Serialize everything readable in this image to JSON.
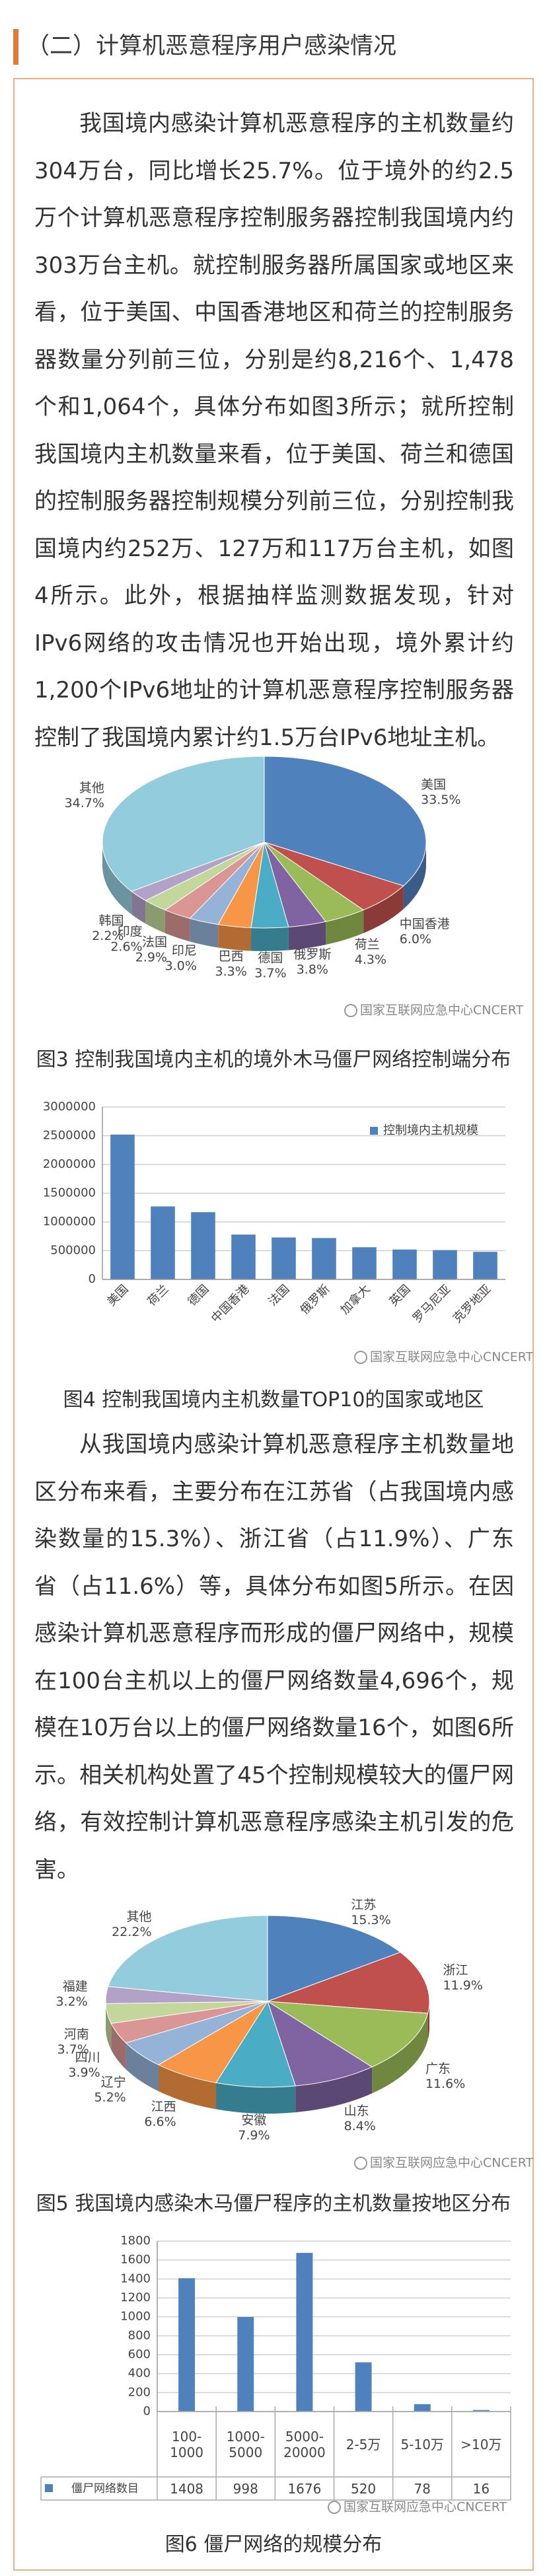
{
  "header": {
    "title": "（二）计算机恶意程序用户感染情况"
  },
  "paragraphs": [
    "我国境内感染计算机恶意程序的主机数量约304万台，同比增长25.7%。位于境外的约2.5万个计算机恶意程序控制服务器控制我国境内约303万台主机。就控制服务器所属国家或地区来看，位于美国、中国香港地区和荷兰的控制服务器数量分列前三位，分别是约8,216个、1,478个和1,064个，具体分布如图3所示；就所控制我国境内主机数量来看，位于美国、荷兰和德国的控制服务器控制规模分列前三位，分别控制我国境内约252万、127万和117万台主机，如图4所示。此外，根据抽样监测数据发现，针对IPv6网络的攻击情况也开始出现，境外累计约1,200个IPv6地址的计算机恶意程序控制服务器控制了我国境内累计约1.5万台IPv6地址主机。",
    "从我国境内感染计算机恶意程序主机数量地区分布来看，主要分布在江苏省（占我国境内感染数量的15.3%）、浙江省（占11.9%）、广东省（占11.6%）等，具体分布如图5所示。在因感染计算机恶意程序而形成的僵尸网络中，规模在100台主机以上的僵尸网络数量4,696个，规模在10万台以上的僵尸网络数量16个，如图6所示。相关机构处置了45个控制规模较大的僵尸网络，有效控制计算机恶意程序感染主机引发的危害。"
  ],
  "chart_data": [
    {
      "type": "pie",
      "caption": "图3 控制我国境内主机的境外木马僵尸网络控制端分布",
      "watermark": "国家互联网应急中心CNCERT",
      "categories": [
        "美国",
        "中国香港",
        "荷兰",
        "俄罗斯",
        "德国",
        "巴西",
        "印尼",
        "法国",
        "印度",
        "韩国",
        "其他"
      ],
      "values": [
        33.5,
        6.0,
        4.3,
        3.8,
        3.7,
        3.3,
        3.0,
        2.9,
        2.6,
        2.2,
        34.7
      ],
      "value_labels": [
        "33.5%",
        "6.0%",
        "4.3%",
        "3.8%",
        "3.7%",
        "3.3%",
        "3.0%",
        "2.9%",
        "2.6%",
        "2.2%",
        "34.7%"
      ],
      "colors": [
        "#4f81bd",
        "#c0504d",
        "#9bbb59",
        "#8064a2",
        "#4bacc6",
        "#f79646",
        "#95b3d7",
        "#d99694",
        "#c3d69b",
        "#b3a2c7",
        "#93cddd"
      ]
    },
    {
      "type": "bar",
      "caption": "图4 控制我国境内主机数量TOP10的国家或地区",
      "watermark": "国家互联网应急中心CNCERT",
      "categories": [
        "美国",
        "荷兰",
        "德国",
        "中国香港",
        "法国",
        "俄罗斯",
        "加拿大",
        "英国",
        "罗马尼亚",
        "克罗地亚"
      ],
      "series": [
        {
          "name": "控制境内主机规模",
          "color": "#4f81bd",
          "values": [
            2520000,
            1270000,
            1170000,
            780000,
            730000,
            720000,
            560000,
            520000,
            510000,
            480000
          ]
        }
      ],
      "ylim": [
        0,
        3000000
      ],
      "yticks": [
        0,
        500000,
        1000000,
        1500000,
        2000000,
        2500000,
        3000000
      ],
      "grid": true,
      "legend": "top-right"
    },
    {
      "type": "pie",
      "caption": "图5 我国境内感染木马僵尸程序的主机数量按地区分布",
      "watermark": "国家互联网应急中心CNCERT",
      "categories": [
        "江苏",
        "浙江",
        "广东",
        "山东",
        "安徽",
        "江西",
        "辽宁",
        "四川",
        "河南",
        "福建",
        "其他"
      ],
      "values": [
        15.3,
        11.9,
        11.6,
        8.4,
        7.9,
        6.6,
        5.2,
        3.9,
        3.7,
        3.2,
        22.2
      ],
      "value_labels": [
        "15.3%",
        "11.9%",
        "11.6%",
        "8.4%",
        "7.9%",
        "6.6%",
        "5.2%",
        "3.9%",
        "3.7%",
        "3.2%",
        "22.2%"
      ],
      "colors": [
        "#4f81bd",
        "#c0504d",
        "#9bbb59",
        "#8064a2",
        "#4bacc6",
        "#f79646",
        "#95b3d7",
        "#d99694",
        "#c3d69b",
        "#b3a2c7",
        "#93cddd"
      ]
    },
    {
      "type": "bar",
      "caption": "图6 僵尸网络的规模分布",
      "watermark": "国家互联网应急中心CNCERT",
      "categories": [
        "100-\n1000",
        "1000-\n5000",
        "5000-\n20000",
        "2-5万",
        "5-10万",
        ">10万"
      ],
      "series": [
        {
          "name": "僵尸网络数目",
          "color": "#4f81bd",
          "values": [
            1408,
            998,
            1676,
            520,
            78,
            16
          ]
        }
      ],
      "ylim": [
        0,
        1800
      ],
      "yticks": [
        0,
        200,
        400,
        600,
        800,
        1000,
        1200,
        1400,
        1600,
        1800
      ],
      "grid": true,
      "data_table": true
    }
  ]
}
